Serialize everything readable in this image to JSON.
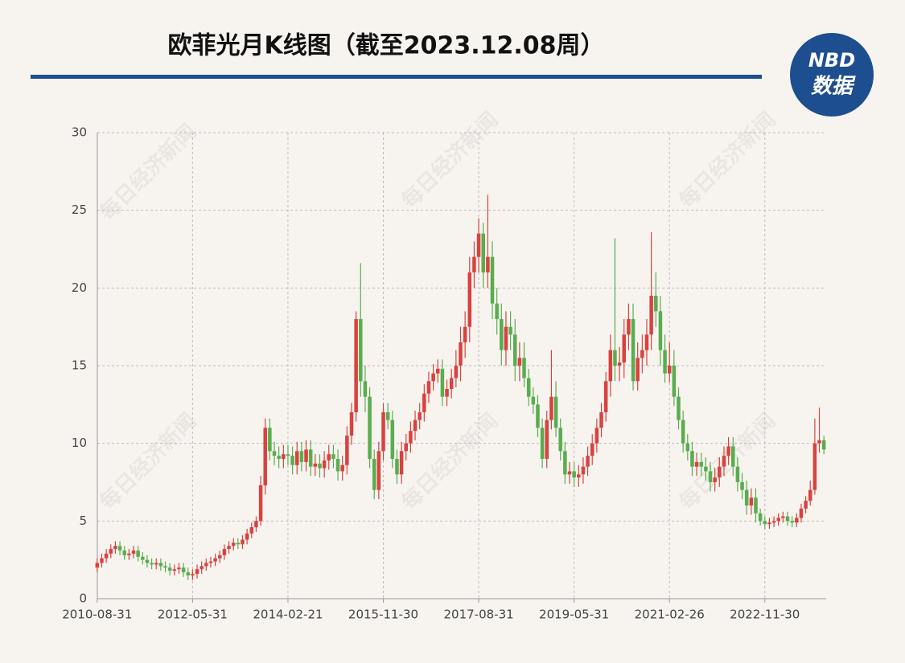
{
  "chart_data": {
    "type": "candlestick",
    "title": "欧菲光月K线图（截至2023.12.08周）",
    "logo": [
      "NBD",
      "数据"
    ],
    "watermark": "每日经济新闻",
    "up_color": "#d9423f",
    "down_color": "#5aad4e",
    "grid": true,
    "ylim": [
      0,
      30
    ],
    "yticks": [
      0,
      5,
      10,
      15,
      20,
      25,
      30
    ],
    "categories": [
      "2010-08-31",
      null,
      null,
      null,
      null,
      null,
      null,
      null,
      null,
      null,
      null,
      null,
      null,
      null,
      null,
      null,
      null,
      null,
      null,
      null,
      null,
      "2012-05-31",
      null,
      null,
      null,
      null,
      null,
      null,
      null,
      null,
      null,
      null,
      null,
      null,
      null,
      null,
      null,
      null,
      null,
      null,
      null,
      null,
      "2014-02-21",
      null,
      null,
      null,
      null,
      null,
      null,
      null,
      null,
      null,
      null,
      null,
      null,
      null,
      null,
      null,
      null,
      null,
      null,
      null,
      null,
      "2015-11-30",
      null,
      null,
      null,
      null,
      null,
      null,
      null,
      null,
      null,
      null,
      null,
      null,
      null,
      null,
      null,
      null,
      null,
      null,
      null,
      null,
      "2017-08-31",
      null,
      null,
      null,
      null,
      null,
      null,
      null,
      null,
      null,
      null,
      null,
      null,
      null,
      null,
      null,
      null,
      null,
      null,
      null,
      null,
      "2019-05-31",
      null,
      null,
      null,
      null,
      null,
      null,
      null,
      null,
      null,
      null,
      null,
      null,
      null,
      null,
      null,
      null,
      null,
      null,
      null,
      null,
      "2021-02-26",
      null,
      null,
      null,
      null,
      null,
      null,
      null,
      null,
      null,
      null,
      null,
      null,
      null,
      null,
      null,
      null,
      null,
      null,
      null,
      null,
      "2022-11-30",
      null,
      null,
      null,
      null,
      null,
      null,
      null,
      null,
      null,
      null,
      null,
      null,
      null
    ],
    "open": [
      2.0,
      2.3,
      2.6,
      2.9,
      3.2,
      3.4,
      3.1,
      2.8,
      2.9,
      3.1,
      2.7,
      2.5,
      2.3,
      2.2,
      2.3,
      2.1,
      2.0,
      1.8,
      1.9,
      2.0,
      1.7,
      1.5,
      1.6,
      1.9,
      2.1,
      2.3,
      2.4,
      2.6,
      2.8,
      3.2,
      3.4,
      3.6,
      3.5,
      3.8,
      4.2,
      4.6,
      5.0,
      7.3,
      11.0,
      9.5,
      9.2,
      9.0,
      9.3,
      9.2,
      8.6,
      9.5,
      8.8,
      9.6,
      8.5,
      8.7,
      8.4,
      8.9,
      9.3,
      9.0,
      8.2,
      8.6,
      10.5,
      12.0,
      18.0,
      14.0,
      13.0,
      9.0,
      7.0,
      9.5,
      12.0,
      11.5,
      9.0,
      8.0,
      9.5,
      10.0,
      10.8,
      11.5,
      12.0,
      13.2,
      14.0,
      14.5,
      14.8,
      13.0,
      13.5,
      14.2,
      15.0,
      16.5,
      17.5,
      21.0,
      22.0,
      23.5,
      21.0,
      22.0,
      19.0,
      18.0,
      16.0,
      17.5,
      17.0,
      15.0,
      15.5,
      14.2,
      13.0,
      12.5,
      11.0,
      9.0,
      11.5,
      13.0,
      11.0,
      9.5,
      8.0,
      8.2,
      7.8,
      8.0,
      8.5,
      9.2,
      10.0,
      11.0,
      12.0,
      14.0,
      16.0,
      15.0,
      15.2,
      17.0,
      18.0,
      14.0,
      15.5,
      16.0,
      17.0,
      19.5,
      18.5,
      16.0,
      14.5,
      15.0,
      13.0,
      11.5,
      10.0,
      9.5,
      8.5,
      8.8,
      8.5,
      8.2,
      7.5,
      7.8,
      8.5,
      9.2,
      9.8,
      8.5,
      7.5,
      7.0,
      6.0,
      6.5,
      5.5,
      5.0,
      4.8,
      4.9,
      5.0,
      5.2,
      5.3,
      5.0,
      4.9,
      5.2,
      5.8,
      6.3,
      7.0,
      10.0,
      10.2
    ],
    "high": [
      2.6,
      2.9,
      3.2,
      3.5,
      3.7,
      3.7,
      3.4,
      3.2,
      3.4,
      3.4,
      3.0,
      2.8,
      2.6,
      2.6,
      2.6,
      2.4,
      2.3,
      2.2,
      2.3,
      2.3,
      2.0,
      1.9,
      2.2,
      2.4,
      2.6,
      2.7,
      2.9,
      3.1,
      3.5,
      3.7,
      3.9,
      3.9,
      4.1,
      4.5,
      4.9,
      5.3,
      7.9,
      11.6,
      11.6,
      10.1,
      9.8,
      9.9,
      9.9,
      9.8,
      10.1,
      10.1,
      10.2,
      10.2,
      9.3,
      9.3,
      9.5,
      9.9,
      9.9,
      9.6,
      9.2,
      11.1,
      12.6,
      18.5,
      21.6,
      15.0,
      13.6,
      9.6,
      10.1,
      12.6,
      12.6,
      12.1,
      9.6,
      10.1,
      10.6,
      11.4,
      12.1,
      12.6,
      13.8,
      14.6,
      15.1,
      15.4,
      15.4,
      14.1,
      14.8,
      16.0,
      17.5,
      18.5,
      22.0,
      23.0,
      24.5,
      24.2,
      26.0,
      23.0,
      20.0,
      19.0,
      18.5,
      18.5,
      18.0,
      16.5,
      16.5,
      14.8,
      13.6,
      13.1,
      11.6,
      12.1,
      16.0,
      14.0,
      11.6,
      10.1,
      8.8,
      8.8,
      8.6,
      9.1,
      9.8,
      10.6,
      11.6,
      12.6,
      14.6,
      17.0,
      23.2,
      16.2,
      18.0,
      19.0,
      19.0,
      16.5,
      17.0,
      18.0,
      23.6,
      21.0,
      19.5,
      17.0,
      16.5,
      16.0,
      13.6,
      12.1,
      10.6,
      10.1,
      9.4,
      9.4,
      9.1,
      8.8,
      8.4,
      9.1,
      9.8,
      10.4,
      10.4,
      9.1,
      8.1,
      7.6,
      7.1,
      7.1,
      5.8,
      5.3,
      5.2,
      5.3,
      5.5,
      5.6,
      5.6,
      5.3,
      5.5,
      6.1,
      6.6,
      7.6,
      11.6,
      12.3,
      10.5
    ],
    "low": [
      1.7,
      2.0,
      2.3,
      2.6,
      2.9,
      2.8,
      2.5,
      2.5,
      2.6,
      2.4,
      2.2,
      2.0,
      1.9,
      1.9,
      1.8,
      1.7,
      1.5,
      1.5,
      1.6,
      1.4,
      1.2,
      1.2,
      1.3,
      1.6,
      1.8,
      2.0,
      2.1,
      2.3,
      2.5,
      2.9,
      3.1,
      3.2,
      3.2,
      3.5,
      3.9,
      4.3,
      4.7,
      6.7,
      8.9,
      8.6,
      8.4,
      8.4,
      8.6,
      8.0,
      8.0,
      8.2,
      8.2,
      7.9,
      7.9,
      7.8,
      7.8,
      8.3,
      8.4,
      7.6,
      7.6,
      8.0,
      9.9,
      11.4,
      13.0,
      12.0,
      8.4,
      6.4,
      6.4,
      8.9,
      10.9,
      8.4,
      7.4,
      7.4,
      8.9,
      9.4,
      10.2,
      10.9,
      11.4,
      12.6,
      13.4,
      13.9,
      12.4,
      12.4,
      12.9,
      13.6,
      14.0,
      15.5,
      16.5,
      20.0,
      21.0,
      20.0,
      20.0,
      18.0,
      17.0,
      15.0,
      15.0,
      16.0,
      14.0,
      14.0,
      13.6,
      12.4,
      11.9,
      10.4,
      8.4,
      8.4,
      10.9,
      10.4,
      8.9,
      7.4,
      7.4,
      7.2,
      7.2,
      7.4,
      7.9,
      8.6,
      9.4,
      10.4,
      11.4,
      13.0,
      14.0,
      14.0,
      14.2,
      16.0,
      13.4,
      13.4,
      14.5,
      15.0,
      16.0,
      17.5,
      15.0,
      13.9,
      13.9,
      12.4,
      10.9,
      9.4,
      8.9,
      7.9,
      7.9,
      7.9,
      7.6,
      6.9,
      6.9,
      7.2,
      7.9,
      8.6,
      7.9,
      6.9,
      6.4,
      5.4,
      5.4,
      4.9,
      4.7,
      4.5,
      4.5,
      4.6,
      4.7,
      4.9,
      4.7,
      4.6,
      4.6,
      4.9,
      5.5,
      6.0,
      6.7,
      9.4,
      9.3
    ],
    "close": [
      2.3,
      2.6,
      2.9,
      3.2,
      3.4,
      3.1,
      2.8,
      2.9,
      3.1,
      2.7,
      2.5,
      2.3,
      2.2,
      2.3,
      2.1,
      2.0,
      1.8,
      1.9,
      2.0,
      1.7,
      1.5,
      1.6,
      1.9,
      2.1,
      2.3,
      2.4,
      2.6,
      2.8,
      3.2,
      3.4,
      3.6,
      3.5,
      3.8,
      4.2,
      4.6,
      5.0,
      7.3,
      11.0,
      9.5,
      9.2,
      9.0,
      9.3,
      9.2,
      8.6,
      9.5,
      8.8,
      9.6,
      8.5,
      8.7,
      8.4,
      8.9,
      9.3,
      9.0,
      8.2,
      8.6,
      10.5,
      12.0,
      18.0,
      14.0,
      13.0,
      9.0,
      7.0,
      9.5,
      12.0,
      11.5,
      9.0,
      8.0,
      9.5,
      10.0,
      10.8,
      11.5,
      12.0,
      13.2,
      14.0,
      14.5,
      14.8,
      13.0,
      13.5,
      14.2,
      15.0,
      16.5,
      17.5,
      21.0,
      22.0,
      23.5,
      21.0,
      22.0,
      19.0,
      18.0,
      16.0,
      17.5,
      17.0,
      15.0,
      15.5,
      14.2,
      13.0,
      12.5,
      11.0,
      9.0,
      11.5,
      13.0,
      11.0,
      9.5,
      8.0,
      8.2,
      7.8,
      8.0,
      8.5,
      9.2,
      10.0,
      11.0,
      12.0,
      14.0,
      16.0,
      15.0,
      15.2,
      17.0,
      18.0,
      14.0,
      15.5,
      16.0,
      17.0,
      19.5,
      18.5,
      16.0,
      14.5,
      15.0,
      13.0,
      11.5,
      10.0,
      9.5,
      8.5,
      8.8,
      8.5,
      8.2,
      7.5,
      7.8,
      8.5,
      9.2,
      9.8,
      8.5,
      7.5,
      7.0,
      6.0,
      6.5,
      5.5,
      5.0,
      4.8,
      4.9,
      5.0,
      5.2,
      5.3,
      5.0,
      4.9,
      5.2,
      5.8,
      6.3,
      7.0,
      10.0,
      10.2,
      9.6
    ]
  }
}
